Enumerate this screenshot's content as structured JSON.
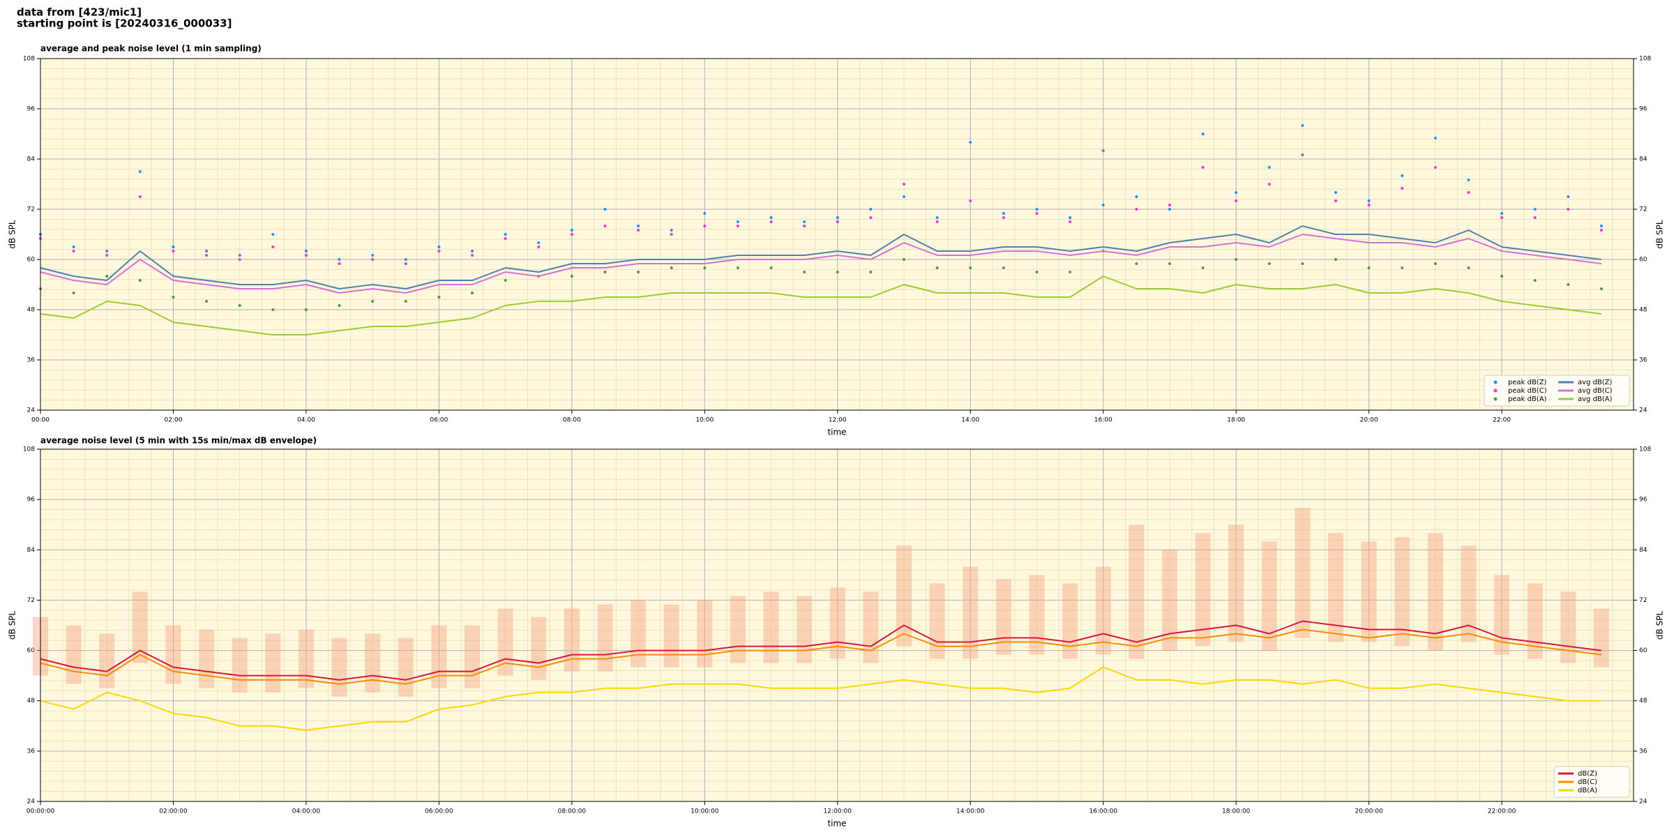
{
  "header": [
    "data from [423/mic1]",
    "starting point is [20240316_000033]"
  ],
  "chart_data": [
    {
      "type": "line",
      "title": "average and peak noise level (1 min sampling)",
      "xlabel": "time",
      "ylabel": "dB SPL",
      "ylabel_right": "dB SPL",
      "background": "#fff8dc",
      "grid": true,
      "legend": "lower right",
      "legend_columns": 2,
      "xlim": [
        "00:00",
        "23:59"
      ],
      "xticks": [
        "00:00",
        "02:00",
        "04:00",
        "06:00",
        "08:00",
        "10:00",
        "12:00",
        "14:00",
        "16:00",
        "18:00",
        "20:00",
        "22:00"
      ],
      "ylim": [
        24,
        108
      ],
      "yticks": [
        24,
        36,
        48,
        60,
        72,
        84,
        96,
        108
      ],
      "x": [
        "00:00",
        "00:30",
        "01:00",
        "01:30",
        "02:00",
        "02:30",
        "03:00",
        "03:30",
        "04:00",
        "04:30",
        "05:00",
        "05:30",
        "06:00",
        "06:30",
        "07:00",
        "07:30",
        "08:00",
        "08:30",
        "09:00",
        "09:30",
        "10:00",
        "10:30",
        "11:00",
        "11:30",
        "12:00",
        "12:30",
        "13:00",
        "13:30",
        "14:00",
        "14:30",
        "15:00",
        "15:30",
        "16:00",
        "16:30",
        "17:00",
        "17:30",
        "18:00",
        "18:30",
        "19:00",
        "19:30",
        "20:00",
        "20:30",
        "21:00",
        "21:30",
        "22:00",
        "22:30",
        "23:00",
        "23:30"
      ],
      "series": [
        {
          "name": "peak dB(Z)",
          "type": "scatter",
          "color": "#1e90ff",
          "values": [
            66,
            63,
            62,
            81,
            63,
            62,
            61,
            66,
            62,
            60,
            61,
            60,
            63,
            62,
            66,
            64,
            67,
            72,
            68,
            67,
            71,
            69,
            70,
            69,
            70,
            72,
            75,
            70,
            88,
            71,
            72,
            70,
            73,
            75,
            72,
            90,
            76,
            82,
            92,
            76,
            74,
            80,
            89,
            79,
            71,
            72,
            75,
            68
          ]
        },
        {
          "name": "peak dB(C)",
          "type": "scatter",
          "color": "#ff33cc",
          "values": [
            65,
            62,
            61,
            75,
            62,
            61,
            60,
            63,
            61,
            59,
            60,
            59,
            62,
            61,
            65,
            63,
            66,
            68,
            67,
            66,
            68,
            68,
            69,
            68,
            69,
            70,
            78,
            69,
            74,
            70,
            71,
            69,
            86,
            72,
            73,
            82,
            74,
            78,
            85,
            74,
            73,
            77,
            82,
            76,
            70,
            70,
            72,
            67
          ]
        },
        {
          "name": "peak dB(A)",
          "type": "scatter",
          "color": "#4f9a3a",
          "values": [
            53,
            52,
            56,
            55,
            51,
            50,
            49,
            48,
            48,
            49,
            50,
            50,
            51,
            52,
            55,
            56,
            56,
            57,
            57,
            58,
            58,
            58,
            58,
            57,
            57,
            57,
            60,
            58,
            58,
            58,
            57,
            57,
            62,
            59,
            59,
            58,
            60,
            59,
            59,
            60,
            58,
            58,
            59,
            58,
            56,
            55,
            54,
            53
          ]
        },
        {
          "name": "avg dB(Z)",
          "type": "line",
          "color": "#4f81b0",
          "values": [
            58,
            56,
            55,
            62,
            56,
            55,
            54,
            54,
            55,
            53,
            54,
            53,
            55,
            55,
            58,
            57,
            59,
            59,
            60,
            60,
            60,
            61,
            61,
            61,
            62,
            61,
            66,
            62,
            62,
            63,
            63,
            62,
            63,
            62,
            64,
            65,
            66,
            64,
            68,
            66,
            66,
            65,
            64,
            67,
            63,
            62,
            61,
            60
          ]
        },
        {
          "name": "avg dB(C)",
          "type": "line",
          "color": "#da70d6",
          "values": [
            57,
            55,
            54,
            60,
            55,
            54,
            53,
            53,
            54,
            52,
            53,
            52,
            54,
            54,
            57,
            56,
            58,
            58,
            59,
            59,
            59,
            60,
            60,
            60,
            61,
            60,
            64,
            61,
            61,
            62,
            62,
            61,
            62,
            61,
            63,
            63,
            64,
            63,
            66,
            65,
            64,
            64,
            63,
            65,
            62,
            61,
            60,
            59
          ]
        },
        {
          "name": "avg dB(A)",
          "type": "line",
          "color": "#9acd32",
          "values": [
            47,
            46,
            50,
            49,
            45,
            44,
            43,
            42,
            42,
            43,
            44,
            44,
            45,
            46,
            49,
            50,
            50,
            51,
            51,
            52,
            52,
            52,
            52,
            51,
            51,
            51,
            54,
            52,
            52,
            52,
            51,
            51,
            56,
            53,
            53,
            52,
            54,
            53,
            53,
            54,
            52,
            52,
            53,
            52,
            50,
            49,
            48,
            47
          ]
        }
      ]
    },
    {
      "type": "line",
      "title": "average noise level (5 min with 15s min/max dB envelope)",
      "xlabel": "time",
      "ylabel": "dB SPL",
      "ylabel_right": "dB SPL",
      "background": "#fff8dc",
      "grid": true,
      "legend": "lower right",
      "legend_columns": 1,
      "xlim": [
        "00:00",
        "23:59"
      ],
      "xticks": [
        "00:00:00",
        "02:00:00",
        "04:00:00",
        "06:00:00",
        "08:00:00",
        "10:00:00",
        "12:00:00",
        "14:00:00",
        "16:00:00",
        "18:00:00",
        "20:00:00",
        "22:00:00"
      ],
      "ylim": [
        24,
        108
      ],
      "yticks": [
        24,
        36,
        48,
        60,
        72,
        84,
        96,
        108
      ],
      "x": [
        "00:00",
        "00:30",
        "01:00",
        "01:30",
        "02:00",
        "02:30",
        "03:00",
        "03:30",
        "04:00",
        "04:30",
        "05:00",
        "05:30",
        "06:00",
        "06:30",
        "07:00",
        "07:30",
        "08:00",
        "08:30",
        "09:00",
        "09:30",
        "10:00",
        "10:30",
        "11:00",
        "11:30",
        "12:00",
        "12:30",
        "13:00",
        "13:30",
        "14:00",
        "14:30",
        "15:00",
        "15:30",
        "16:00",
        "16:30",
        "17:00",
        "17:30",
        "18:00",
        "18:30",
        "19:00",
        "19:30",
        "20:00",
        "20:30",
        "21:00",
        "21:30",
        "22:00",
        "22:30",
        "23:00",
        "23:30"
      ],
      "envelope": {
        "color": "#f4a582",
        "low": [
          54,
          52,
          51,
          57,
          52,
          51,
          50,
          50,
          51,
          49,
          50,
          49,
          51,
          51,
          54,
          53,
          55,
          55,
          56,
          56,
          56,
          57,
          57,
          57,
          58,
          57,
          61,
          58,
          58,
          59,
          59,
          58,
          59,
          58,
          60,
          61,
          62,
          60,
          63,
          62,
          62,
          61,
          60,
          62,
          59,
          58,
          57,
          56
        ],
        "high": [
          68,
          66,
          64,
          74,
          66,
          65,
          63,
          64,
          65,
          63,
          64,
          63,
          66,
          66,
          70,
          68,
          70,
          71,
          72,
          71,
          72,
          73,
          74,
          73,
          75,
          74,
          85,
          76,
          80,
          77,
          78,
          76,
          80,
          90,
          84,
          88,
          90,
          86,
          94,
          88,
          86,
          87,
          88,
          85,
          78,
          76,
          74,
          70
        ]
      },
      "series": [
        {
          "name": "dB(Z)",
          "type": "line",
          "color": "#dc143c",
          "values": [
            58,
            56,
            55,
            60,
            56,
            55,
            54,
            54,
            54,
            53,
            54,
            53,
            55,
            55,
            58,
            57,
            59,
            59,
            60,
            60,
            60,
            61,
            61,
            61,
            62,
            61,
            66,
            62,
            62,
            63,
            63,
            62,
            64,
            62,
            64,
            65,
            66,
            64,
            67,
            66,
            65,
            65,
            64,
            66,
            63,
            62,
            61,
            60
          ]
        },
        {
          "name": "dB(C)",
          "type": "line",
          "color": "#ff8c00",
          "values": [
            57,
            55,
            54,
            59,
            55,
            54,
            53,
            53,
            53,
            52,
            53,
            52,
            54,
            54,
            57,
            56,
            58,
            58,
            59,
            59,
            59,
            60,
            60,
            60,
            61,
            60,
            64,
            61,
            61,
            62,
            62,
            61,
            62,
            61,
            63,
            63,
            64,
            63,
            65,
            64,
            63,
            64,
            63,
            64,
            62,
            61,
            60,
            59
          ]
        },
        {
          "name": "dB(A)",
          "type": "line",
          "color": "#ffd700",
          "values": [
            48,
            46,
            50,
            48,
            45,
            44,
            42,
            42,
            41,
            42,
            43,
            43,
            46,
            47,
            49,
            50,
            50,
            51,
            51,
            52,
            52,
            52,
            51,
            51,
            51,
            52,
            53,
            52,
            51,
            51,
            50,
            51,
            56,
            53,
            53,
            52,
            53,
            53,
            52,
            53,
            51,
            51,
            52,
            51,
            50,
            49,
            48,
            48
          ]
        }
      ]
    }
  ]
}
